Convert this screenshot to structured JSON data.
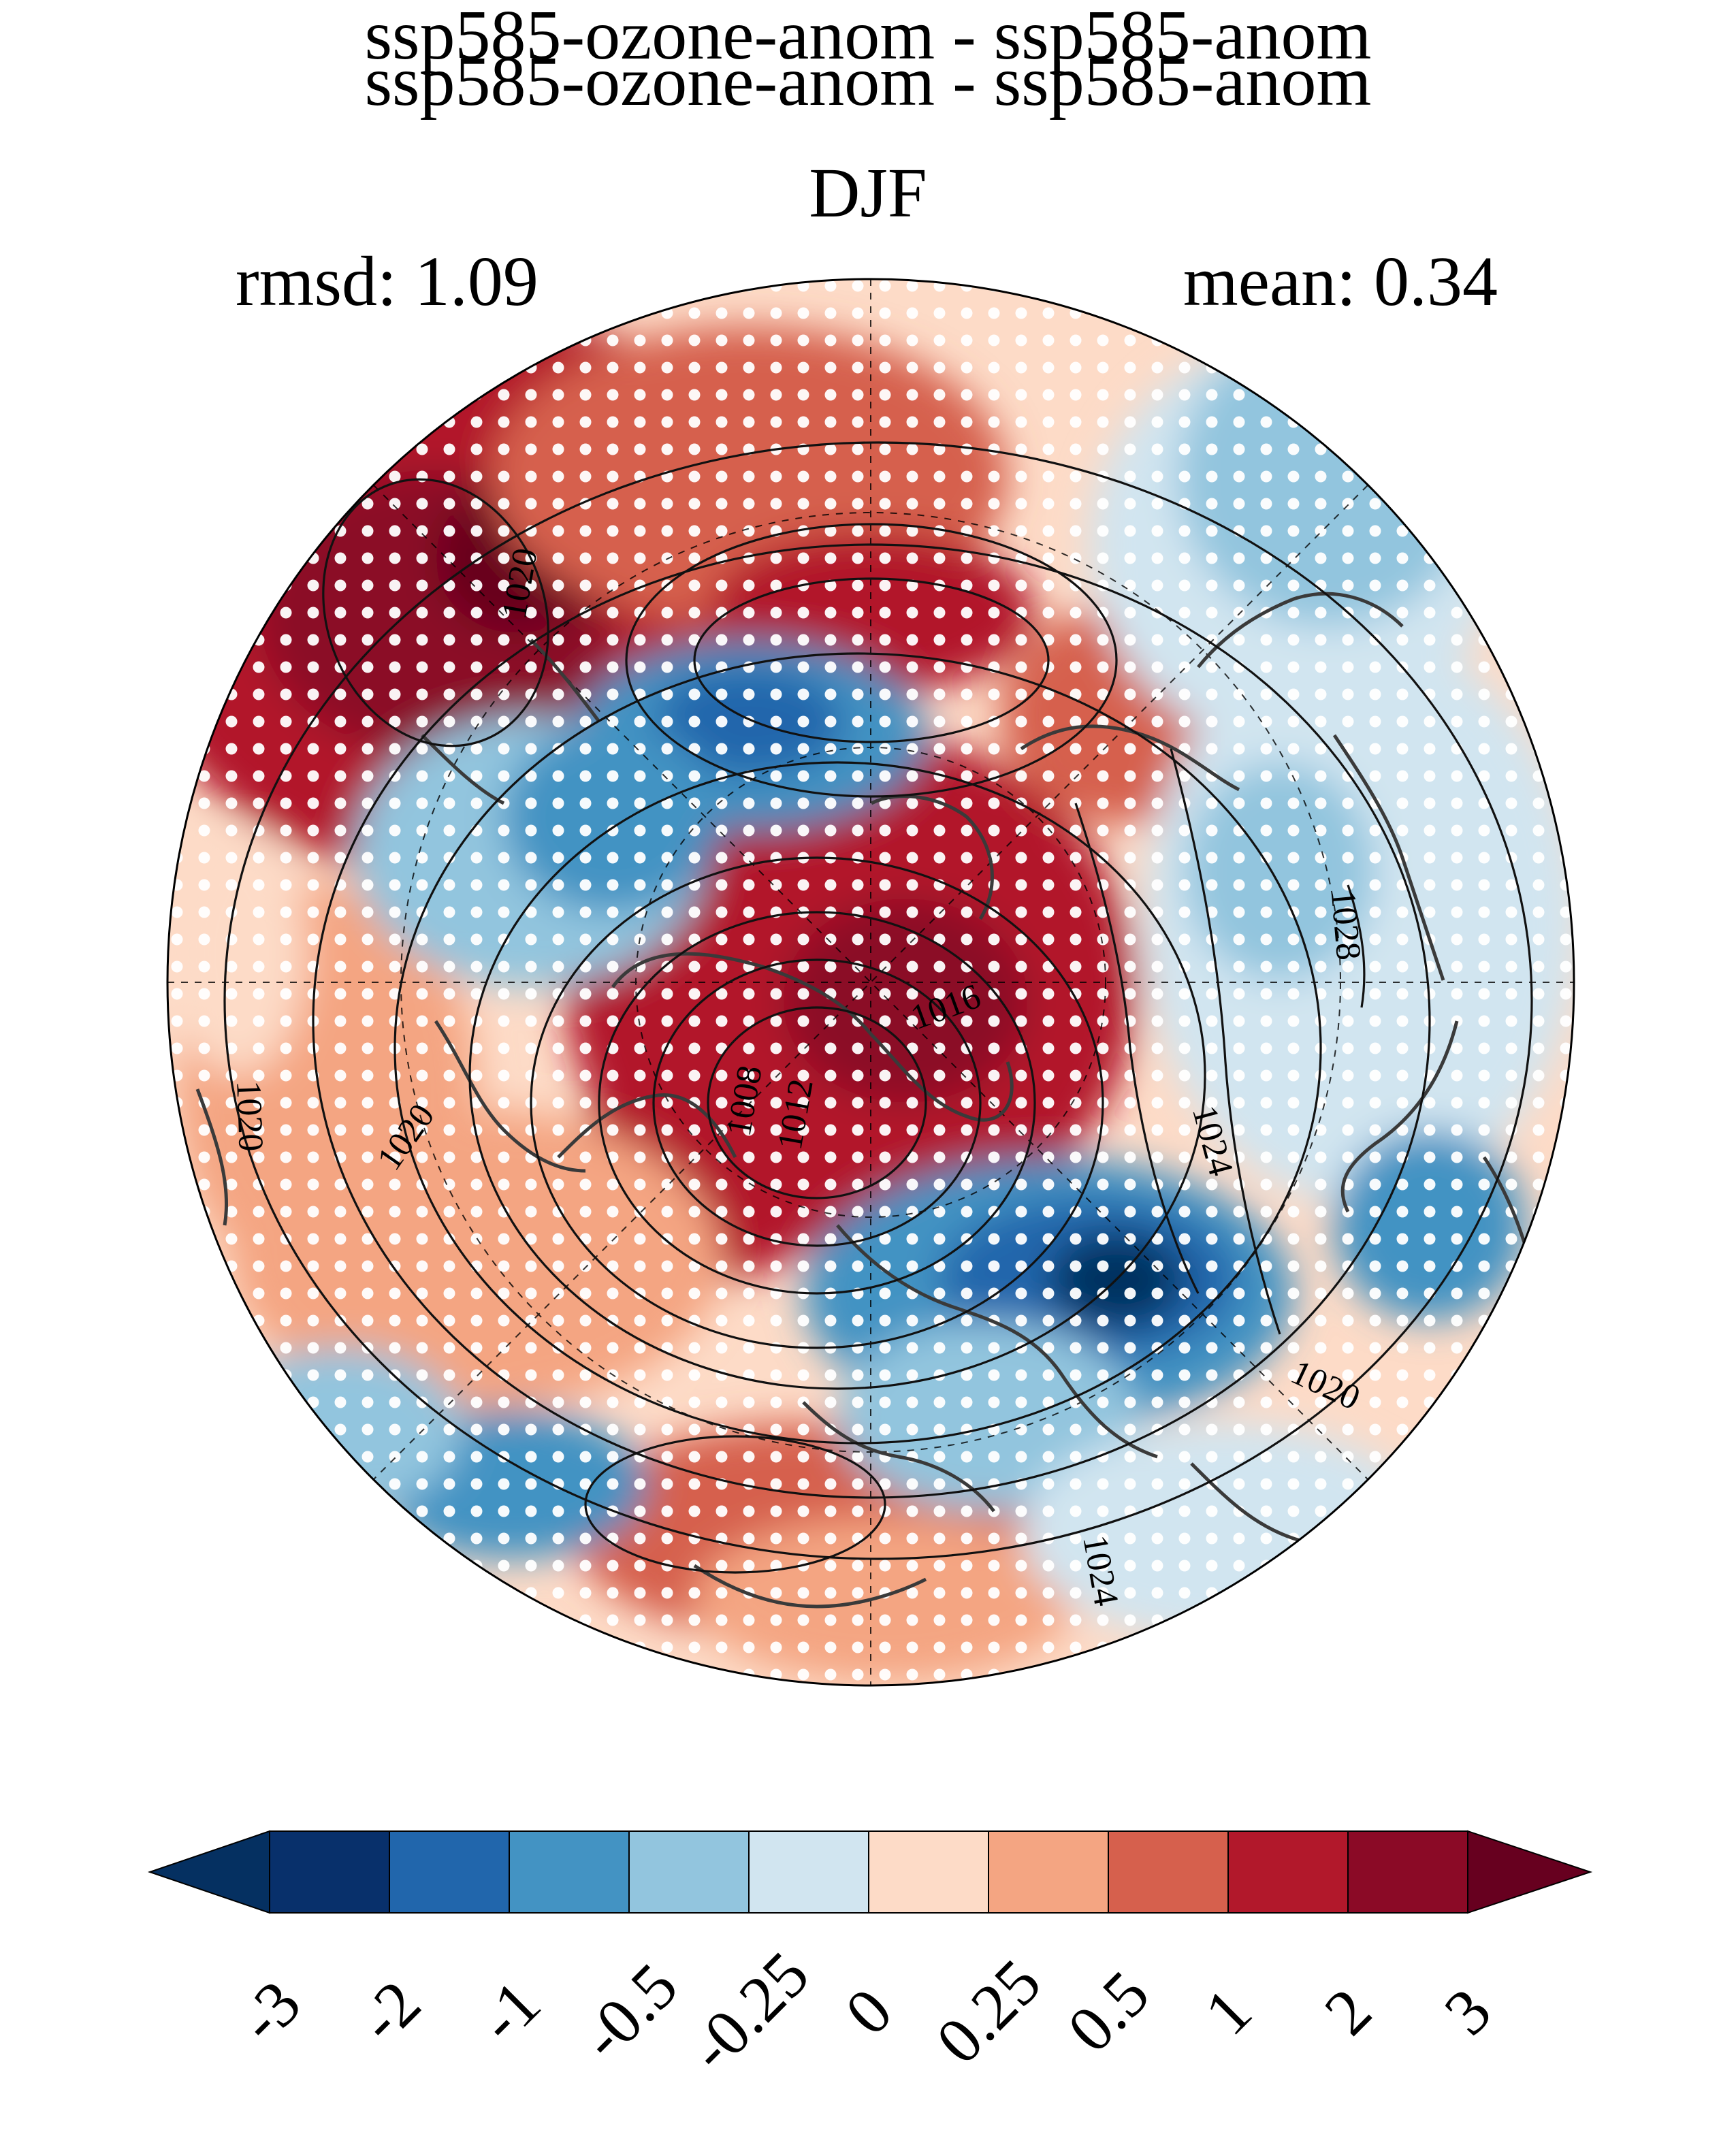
{
  "title": {
    "line1": "ssp585-ozone-anom - ssp585-anom",
    "line2": "DJF",
    "rmsd": "rmsd: 1.09",
    "mean": "mean: 0.34"
  },
  "map": {
    "projection": "north polar stereographic",
    "contour_labels": [
      {
        "text": "1020"
      },
      {
        "text": "1028"
      },
      {
        "text": "1016"
      },
      {
        "text": "1008"
      },
      {
        "text": "1012"
      },
      {
        "text": "1020"
      },
      {
        "text": "1024"
      },
      {
        "text": "1020"
      },
      {
        "text": "1020"
      },
      {
        "text": "1024"
      }
    ],
    "stippling": "white dots mark significant regions"
  },
  "colorbar": {
    "levels": [
      "-3",
      "-2",
      "-1",
      "-0.5",
      "-0.25",
      "0",
      "0.25",
      "0.5",
      "1",
      "2",
      "3"
    ],
    "colors": [
      "#053061",
      "#08306b",
      "#2166ac",
      "#4393c3",
      "#92c5de",
      "#d1e5f0",
      "#fddbc7",
      "#f4a582",
      "#d6604d",
      "#b2182b",
      "#8b0a26",
      "#67001f"
    ]
  }
}
